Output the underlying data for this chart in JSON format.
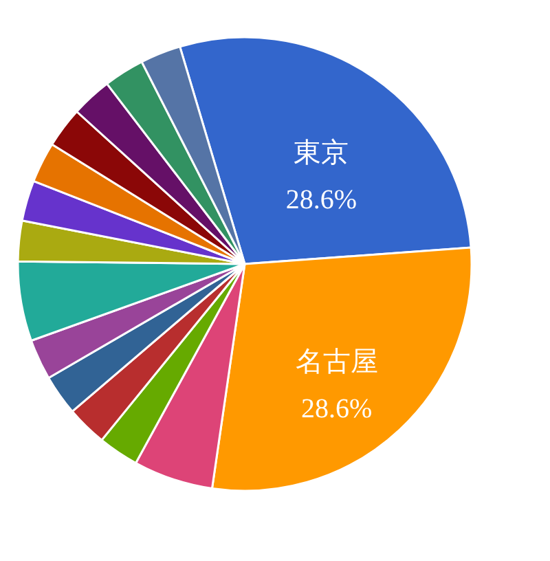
{
  "chart_data": {
    "type": "pie",
    "categories": [
      "東京",
      "名古屋",
      null,
      null,
      null,
      null,
      null,
      null,
      null,
      null,
      null,
      null,
      null,
      null,
      null
    ],
    "values": [
      28.6,
      28.6,
      5.7,
      2.9,
      2.9,
      2.9,
      2.9,
      5.7,
      2.9,
      2.9,
      2.9,
      2.9,
      2.9,
      2.9,
      2.9
    ],
    "colors": [
      "#3366cc",
      "#ff9900",
      "#dd4477",
      "#66aa00",
      "#b82e2e",
      "#316395",
      "#994499",
      "#22aa99",
      "#aaaa11",
      "#6633cc",
      "#e67300",
      "#8b0707",
      "#651067",
      "#329262",
      "#5574a6"
    ],
    "value_labels": [
      "28.6%",
      "28.6%",
      null,
      null,
      null,
      null,
      null,
      null,
      null,
      null,
      null,
      null,
      null,
      null,
      null
    ],
    "legend": false
  }
}
